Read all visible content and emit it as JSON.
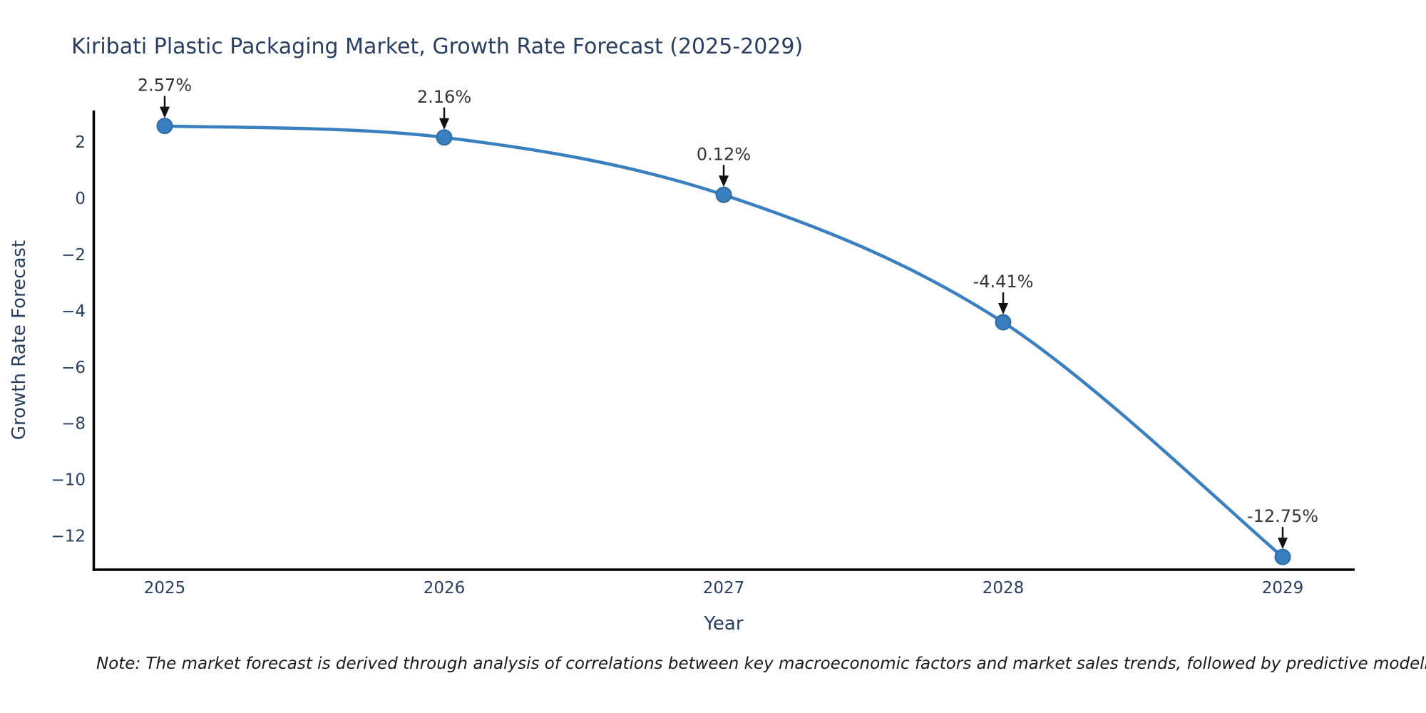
{
  "chart_data": {
    "type": "line",
    "title": "Kiribati Plastic Packaging Market, Growth Rate Forecast (2025-2029)",
    "xlabel": "Year",
    "ylabel": "Growth Rate Forecast",
    "categories": [
      2025,
      2026,
      2027,
      2028,
      2029
    ],
    "series": [
      {
        "name": "Growth Rate Forecast",
        "values": [
          2.57,
          2.16,
          0.12,
          -4.41,
          -12.75
        ]
      }
    ],
    "point_labels": [
      "2.57%",
      "2.16%",
      "0.12%",
      "-4.41%",
      "-12.75%"
    ],
    "ytick_values": [
      2,
      0,
      -2,
      -4,
      -6,
      -8,
      -10,
      -12
    ],
    "ylim": [
      -13.3,
      3.2
    ],
    "grid": false,
    "legend_position": "none",
    "line_color": "#3a80c0",
    "marker_color": "#3a80c0",
    "marker_edge_color": "#2e6ba4",
    "axis_color": "#000000",
    "tick_color": "#2a3f5f",
    "annotation_text_color": "#353535",
    "annotation_arrow_color": "#111111",
    "note": "Note: The market forecast is derived through analysis of correlations between key macroeconomic factors and market sales trends, followed by predictive modeling to project future sales."
  }
}
